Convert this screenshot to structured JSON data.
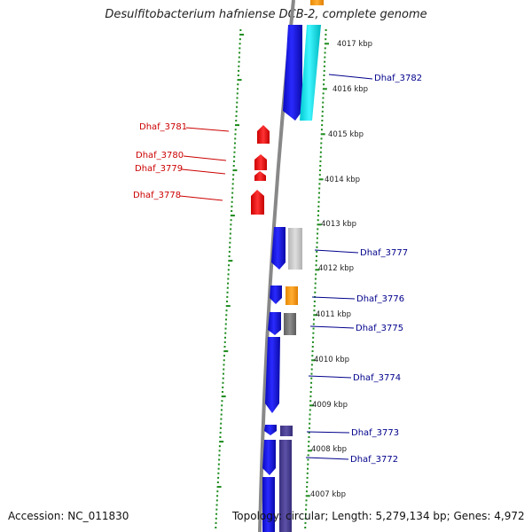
{
  "title": "Desulfitobacterium hafniense DCB-2, complete genome",
  "accession": "Accession: NC_011830",
  "summary": "Topology: circular; Length: 5,279,134 bp; Genes: 4,972",
  "colors": {
    "background": "#ffffff",
    "tick": "#1a8a1a",
    "backbone": "#8a8a8a",
    "forward_label": "#00008b",
    "reverse_label": "#cc0000",
    "cds_blue": "#1515f0",
    "cds_cyan": "#00e5ee",
    "cds_orange": "#ff9a00",
    "cds_lightgray": "#c8c8c8",
    "cds_darkgray": "#787878",
    "cds_purple": "#4a3f8e",
    "cds_red": "#ee1111"
  },
  "scale_labels": [
    "4017 kbp",
    "4016 kbp",
    "4015 kbp",
    "4014 kbp",
    "4013 kbp",
    "4012 kbp",
    "4011 kbp",
    "4010 kbp",
    "4009 kbp",
    "4008 kbp",
    "4007 kbp"
  ],
  "forward_genes": [
    "Dhaf_3782",
    "Dhaf_3777",
    "Dhaf_3776",
    "Dhaf_3775",
    "Dhaf_3774",
    "Dhaf_3773",
    "Dhaf_3772"
  ],
  "reverse_genes": [
    "Dhaf_3781",
    "Dhaf_3780",
    "Dhaf_3779",
    "Dhaf_3778"
  ]
}
